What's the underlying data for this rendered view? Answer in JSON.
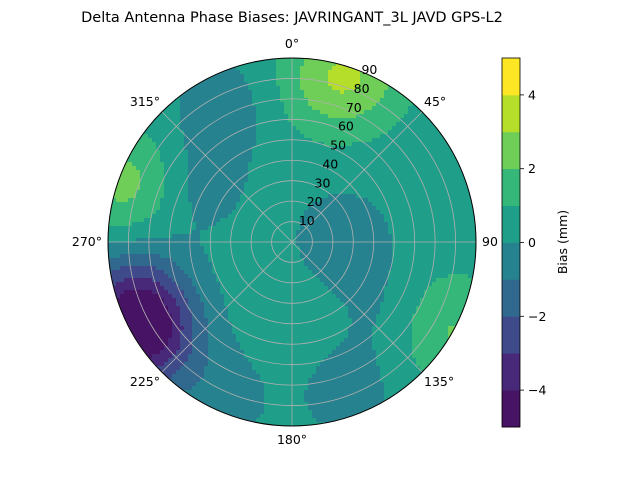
{
  "chart_data": {
    "type": "polar-contour",
    "title": "Delta Antenna Phase Biases: JAVRINGANT_3L   JAVD GPS-L2",
    "theta_direction": "clockwise",
    "theta_zero": "north",
    "theta_ticks": [
      {
        "deg": 0,
        "label": "0°"
      },
      {
        "deg": 45,
        "label": "45°"
      },
      {
        "deg": 90,
        "label": "90"
      },
      {
        "deg": 135,
        "label": "135°"
      },
      {
        "deg": 180,
        "label": "180°"
      },
      {
        "deg": 225,
        "label": "225°"
      },
      {
        "deg": 270,
        "label": "270°"
      },
      {
        "deg": 315,
        "label": "315°"
      }
    ],
    "radial_ticks": [
      10,
      20,
      30,
      40,
      50,
      60,
      70,
      80,
      90
    ],
    "radial_tick_labels": [
      "10",
      "20",
      "30",
      "40",
      "50",
      "60",
      "70",
      "80",
      "90"
    ],
    "rlim": [
      0,
      90
    ],
    "radial_label_angle_deg": 22.5,
    "grid": true,
    "colorbar": {
      "label": "Bias (mm)",
      "levels": [
        -5,
        -4,
        -3,
        -2,
        -1,
        0,
        1,
        2,
        3,
        4,
        5
      ],
      "ticks": [
        -4,
        -2,
        0,
        2,
        4
      ],
      "tick_labels": [
        "−4",
        "−2",
        "0",
        "2",
        "4"
      ],
      "colors": [
        "#471365",
        "#482878",
        "#3e4a89",
        "#31688e",
        "#26828e",
        "#1f9e89",
        "#35b779",
        "#6ece58",
        "#b5de2b",
        "#fde725"
      ]
    },
    "field_background_value": 0.5,
    "field_features": [
      {
        "azimuth_deg": 20,
        "elevation_deg": 88,
        "value": 2.5
      },
      {
        "azimuth_deg": 10,
        "elevation_deg": 78,
        "value": 1.5
      },
      {
        "azimuth_deg": 333,
        "elevation_deg": 75,
        "value": -0.5
      },
      {
        "azimuth_deg": 290,
        "elevation_deg": 85,
        "value": 2.5
      },
      {
        "azimuth_deg": 250,
        "elevation_deg": 82,
        "value": -2.5
      },
      {
        "azimuth_deg": 237,
        "elevation_deg": 86,
        "value": -3.5
      },
      {
        "azimuth_deg": 120,
        "elevation_deg": 84,
        "value": 2.5
      },
      {
        "azimuth_deg": 125,
        "elevation_deg": 65,
        "value": -0.5
      },
      {
        "azimuth_deg": 160,
        "elevation_deg": 80,
        "value": -0.3
      },
      {
        "azimuth_deg": 85,
        "elevation_deg": 25,
        "value": -0.5
      },
      {
        "azimuth_deg": 300,
        "elevation_deg": 55,
        "value": -0.5
      },
      {
        "azimuth_deg": 205,
        "elevation_deg": 85,
        "value": -0.4
      }
    ]
  }
}
